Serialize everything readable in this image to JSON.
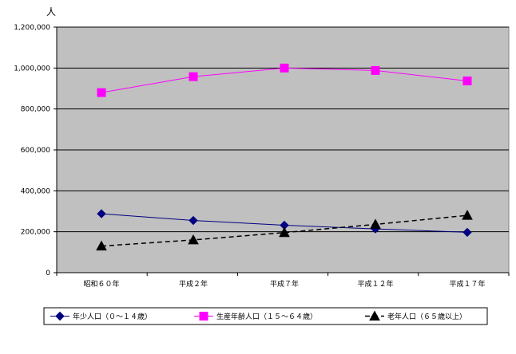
{
  "chart_data": {
    "type": "line",
    "ylabel": "人",
    "categories": [
      "昭和６０年",
      "平成２年",
      "平成７年",
      "平成１２年",
      "平成１７年"
    ],
    "ylim": [
      0,
      1200000
    ],
    "yticks": [
      0,
      200000,
      400000,
      600000,
      800000,
      1000000,
      1200000
    ],
    "ytick_labels": [
      "0",
      "200,000",
      "400,000",
      "600,000",
      "800,000",
      "1,000,000",
      "1,200,000"
    ],
    "grid": true,
    "legend_position": "bottom",
    "plot_background": "#c0c0c0",
    "series": [
      {
        "name": "年少人口（０～１４歳）",
        "values": [
          288000,
          255000,
          232000,
          214000,
          197000
        ],
        "color": "#000080",
        "marker": "diamond",
        "line_style": "solid"
      },
      {
        "name": "生産年齢人口（１５～６４歳）",
        "values": [
          880000,
          958000,
          1000000,
          988000,
          937000
        ],
        "color": "#ff00ff",
        "marker": "square",
        "line_style": "solid"
      },
      {
        "name": "老年人口（６５歳以上）",
        "values": [
          130000,
          160000,
          196000,
          236000,
          280000
        ],
        "color": "#000000",
        "marker": "triangle",
        "line_style": "dashed"
      }
    ]
  }
}
